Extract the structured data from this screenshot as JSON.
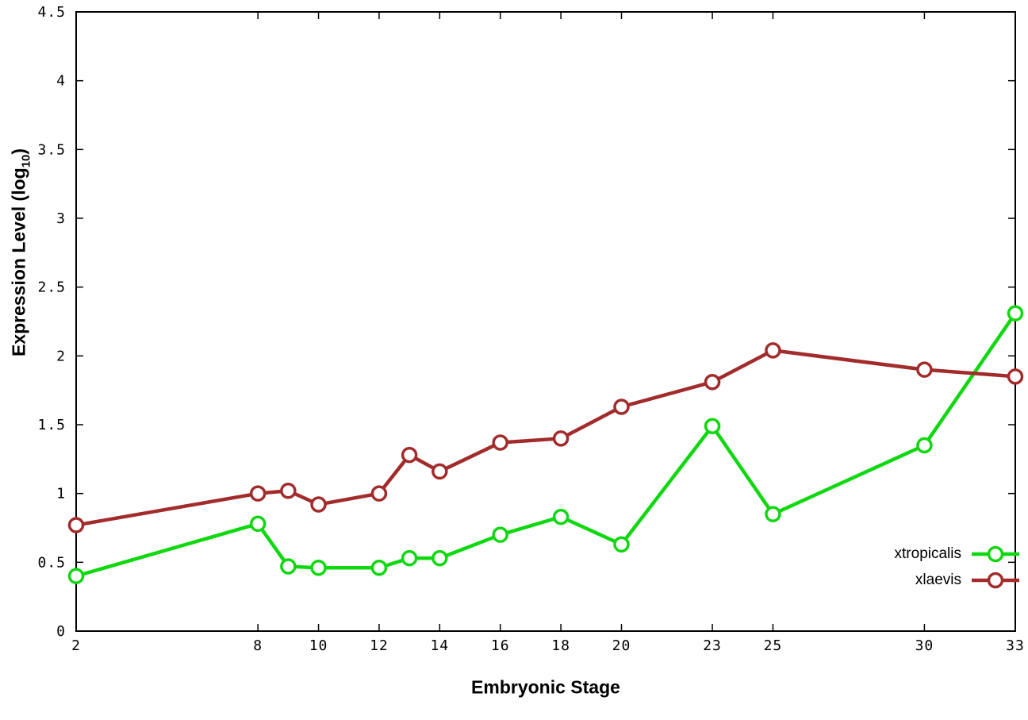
{
  "chart_data": {
    "type": "line",
    "title": "",
    "xlabel": "Embryonic Stage",
    "ylabel": "Expression Level (log10)",
    "ylabel_parts": {
      "prefix": "Expression Level (log",
      "sub": "10",
      "suffix": ")"
    },
    "xlim": [
      2,
      33
    ],
    "ylim": [
      0,
      4.5
    ],
    "grid": false,
    "legend_position": "bottom-right",
    "marker": {
      "shape": "circle-open",
      "radius": 8.5
    },
    "x_ticks": [
      {
        "value": 2,
        "label": "2"
      },
      {
        "value": 8,
        "label": "8"
      },
      {
        "value": 10,
        "label": "10"
      },
      {
        "value": 12,
        "label": "12"
      },
      {
        "value": 14,
        "label": "14"
      },
      {
        "value": 16,
        "label": "16"
      },
      {
        "value": 18,
        "label": "18"
      },
      {
        "value": 20,
        "label": "20"
      },
      {
        "value": 23,
        "label": "23"
      },
      {
        "value": 25,
        "label": "25"
      },
      {
        "value": 30,
        "label": "30"
      },
      {
        "value": 33,
        "label": "33"
      }
    ],
    "y_ticks": [
      {
        "value": 0,
        "label": "0"
      },
      {
        "value": 0.5,
        "label": "0.5"
      },
      {
        "value": 1,
        "label": "1"
      },
      {
        "value": 1.5,
        "label": "1.5"
      },
      {
        "value": 2,
        "label": "2"
      },
      {
        "value": 2.5,
        "label": "2.5"
      },
      {
        "value": 3,
        "label": "3"
      },
      {
        "value": 3.5,
        "label": "3.5"
      },
      {
        "value": 4,
        "label": "4"
      },
      {
        "value": 4.5,
        "label": "4.5"
      }
    ],
    "x": [
      2,
      8,
      9,
      10,
      12,
      13,
      14,
      16,
      18,
      20,
      23,
      25,
      30,
      33
    ],
    "series": [
      {
        "name": "xtropicalis",
        "color": "#10d810",
        "values": [
          0.4,
          0.78,
          0.47,
          0.46,
          0.46,
          0.53,
          0.53,
          0.7,
          0.83,
          0.63,
          1.49,
          0.85,
          1.35,
          2.31
        ]
      },
      {
        "name": "xlaevis",
        "color": "#a22c2c",
        "values": [
          0.77,
          1.0,
          1.02,
          0.92,
          1.0,
          1.28,
          1.16,
          1.37,
          1.4,
          1.63,
          1.81,
          2.04,
          1.9,
          1.85
        ]
      }
    ]
  }
}
